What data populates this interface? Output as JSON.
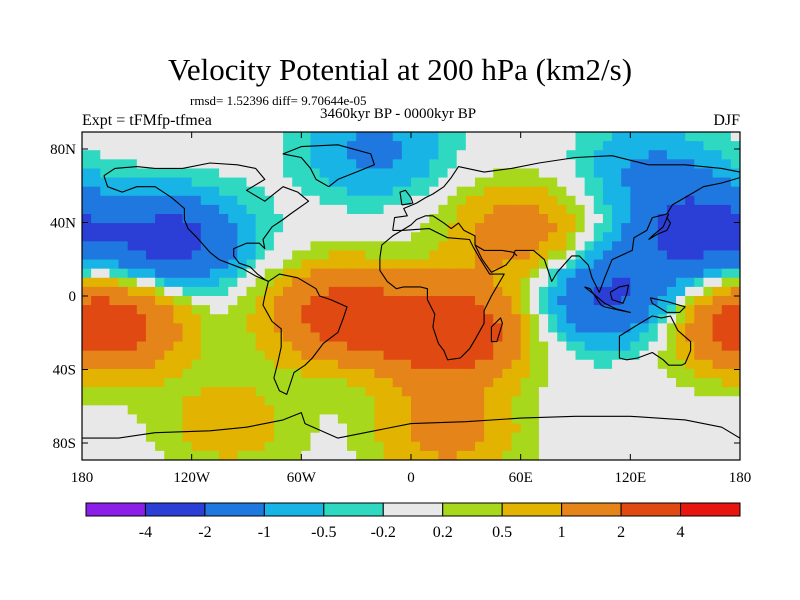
{
  "title": "Velocity Potential at 200 hPa (km2/s)",
  "stats": "rmsd= 1.52396 diff= 9.70644e-05",
  "experiment": "Expt = tFMfp-tfmea",
  "period": "3460kyr BP - 0000kyr BP",
  "season": "DJF",
  "chart_data": {
    "type": "heatmap",
    "variable": "Velocity potential anomaly",
    "units": "km2/s",
    "level": "200 hPa",
    "x_ticks": [
      "180",
      "120W",
      "60W",
      "0",
      "60E",
      "120E",
      "180"
    ],
    "y_ticks": [
      "80N",
      "40N",
      "0",
      "40S",
      "80S"
    ],
    "xlim": [
      -180,
      180
    ],
    "ylim": [
      -90,
      90
    ],
    "colorbar": {
      "levels": [
        "-4",
        "-2",
        "-1",
        "-0.5",
        "-0.2",
        "0.2",
        "0.5",
        "1",
        "2",
        "4"
      ],
      "colors": [
        "#8b1fe8",
        "#2b3fd6",
        "#1f78e0",
        "#19b4e6",
        "#2fd9c1",
        "#e8e8e8",
        "#a8d81c",
        "#e2b300",
        "#e58418",
        "#e04a12",
        "#e8150f"
      ]
    },
    "pattern_centers": [
      {
        "lon": -130,
        "lat": 30,
        "value": -2.5
      },
      {
        "lon": 160,
        "lat": 35,
        "value": -2.5
      },
      {
        "lon": 110,
        "lat": 0,
        "value": -2.2
      },
      {
        "lon": -20,
        "lat": 80,
        "value": -1.2
      },
      {
        "lon": 130,
        "lat": 70,
        "value": -1.0
      },
      {
        "lon": 20,
        "lat": -20,
        "value": 3.5
      },
      {
        "lon": -40,
        "lat": -10,
        "value": 2.5
      },
      {
        "lon": -160,
        "lat": -15,
        "value": 2.2
      },
      {
        "lon": 60,
        "lat": 35,
        "value": 1.5
      },
      {
        "lon": 170,
        "lat": -15,
        "value": 1.3
      },
      {
        "lon": 20,
        "lat": -75,
        "value": 1.3
      },
      {
        "lon": -100,
        "lat": -70,
        "value": 0.8
      }
    ]
  }
}
